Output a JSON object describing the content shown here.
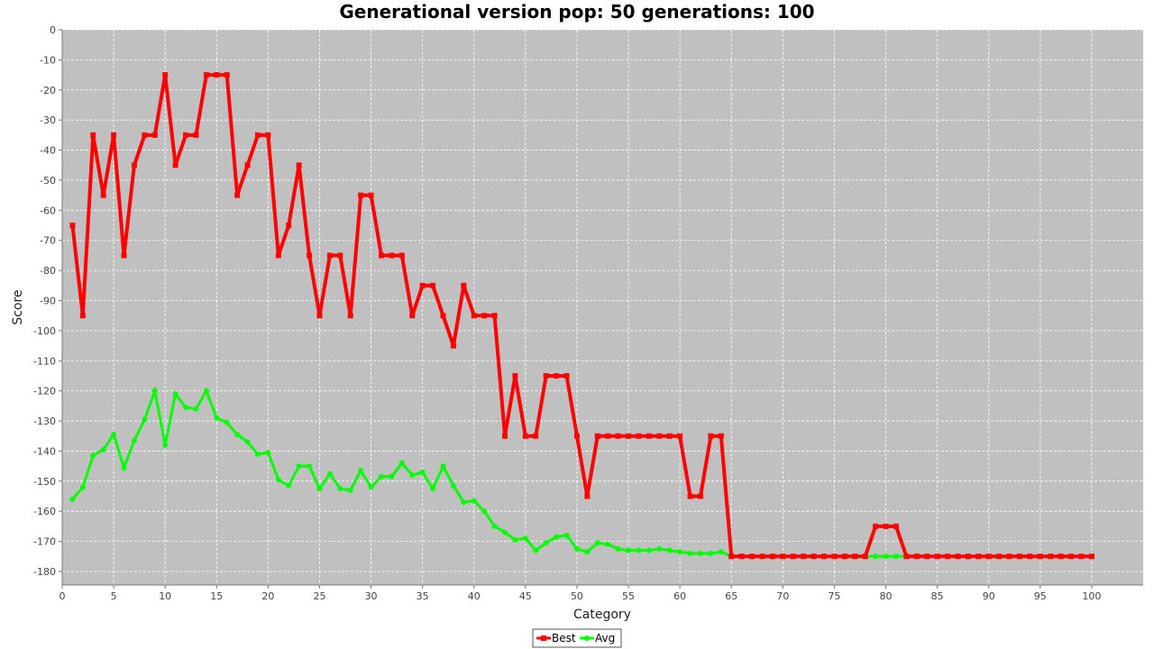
{
  "chart_data": {
    "type": "line",
    "title": "Generational version pop: 50 generations: 100",
    "xlabel": "Category",
    "ylabel": "Score",
    "xlim": [
      0,
      105
    ],
    "ylim": [
      -184.5,
      0
    ],
    "x_ticks": [
      0,
      5,
      10,
      15,
      20,
      25,
      30,
      35,
      40,
      45,
      50,
      55,
      60,
      65,
      70,
      75,
      80,
      85,
      90,
      95,
      100
    ],
    "y_ticks": [
      0,
      -10,
      -20,
      -30,
      -40,
      -50,
      -60,
      -70,
      -80,
      -90,
      -100,
      -110,
      -120,
      -130,
      -140,
      -150,
      -160,
      -170,
      -180
    ],
    "grid": true,
    "legend_position": "bottom-center",
    "x": [
      1,
      2,
      3,
      4,
      5,
      6,
      7,
      8,
      9,
      10,
      11,
      12,
      13,
      14,
      15,
      16,
      17,
      18,
      19,
      20,
      21,
      22,
      23,
      24,
      25,
      26,
      27,
      28,
      29,
      30,
      31,
      32,
      33,
      34,
      35,
      36,
      37,
      38,
      39,
      40,
      41,
      42,
      43,
      44,
      45,
      46,
      47,
      48,
      49,
      50,
      51,
      52,
      53,
      54,
      55,
      56,
      57,
      58,
      59,
      60,
      61,
      62,
      63,
      64,
      65,
      66,
      67,
      68,
      69,
      70,
      71,
      72,
      73,
      74,
      75,
      76,
      77,
      78,
      79,
      80,
      81,
      82,
      83,
      84,
      85,
      86,
      87,
      88,
      89,
      90,
      91,
      92,
      93,
      94,
      95,
      96,
      97,
      98,
      99,
      100
    ],
    "series": [
      {
        "name": "Best",
        "color": "#ff0000",
        "marker": "square",
        "values": [
          -65,
          -95,
          -35,
          -55,
          -35,
          -75,
          -45,
          -35,
          -35,
          -15,
          -45,
          -35,
          -35,
          -15,
          -15,
          -15,
          -55,
          -45,
          -35,
          -35,
          -75,
          -65,
          -45,
          -75,
          -95,
          -75,
          -75,
          -95,
          -55,
          -55,
          -75,
          -75,
          -75,
          -95,
          -85,
          -85,
          -95,
          -105,
          -85,
          -95,
          -95,
          -95,
          -135,
          -115,
          -135,
          -135,
          -115,
          -115,
          -115,
          -135,
          -155,
          -135,
          -135,
          -135,
          -135,
          -135,
          -135,
          -135,
          -135,
          -135,
          -155,
          -155,
          -135,
          -135,
          -175,
          -175,
          -175,
          -175,
          -175,
          -175,
          -175,
          -175,
          -175,
          -175,
          -175,
          -175,
          -175,
          -175,
          -165,
          -165,
          -165,
          -175,
          -175,
          -175,
          -175,
          -175,
          -175,
          -175,
          -175,
          -175,
          -175,
          -175,
          -175,
          -175,
          -175,
          -175,
          -175,
          -175,
          -175,
          -175
        ]
      },
      {
        "name": "Avg",
        "color": "#00ff00",
        "marker": "circle",
        "values": [
          -156,
          -152,
          -141.5,
          -139.5,
          -134.5,
          -145.5,
          -136.5,
          -129.5,
          -120,
          -138,
          -121,
          -125.5,
          -126,
          -120,
          -129,
          -130.5,
          -134.5,
          -137,
          -141,
          -140.5,
          -149.5,
          -151.5,
          -145,
          -145,
          -152.5,
          -147.5,
          -152.5,
          -153,
          -146.5,
          -152,
          -148.5,
          -148.5,
          -144,
          -148,
          -147,
          -152.5,
          -145,
          -151.5,
          -157,
          -156.5,
          -160,
          -165,
          -167,
          -169.5,
          -169,
          -173,
          -170.5,
          -168.5,
          -168,
          -172.5,
          -173.5,
          -170.5,
          -171,
          -172.5,
          -173,
          -173,
          -173,
          -172.5,
          -173,
          -173.5,
          -174,
          -174,
          -174,
          -173.5,
          -175,
          -175,
          -175,
          -175,
          -175,
          -175,
          -175,
          -175,
          -175,
          -175,
          -175,
          -175,
          -175,
          -175,
          -175,
          -175,
          -175,
          -175,
          -175,
          -175,
          -175,
          -175,
          -175,
          -175,
          -175,
          -175,
          -175,
          -175,
          -175,
          -175,
          -175,
          -175,
          -175,
          -175,
          -175,
          -175
        ]
      }
    ]
  },
  "colors": {
    "plot_background": "#c0c0c0",
    "gridline": "#ffffff"
  }
}
